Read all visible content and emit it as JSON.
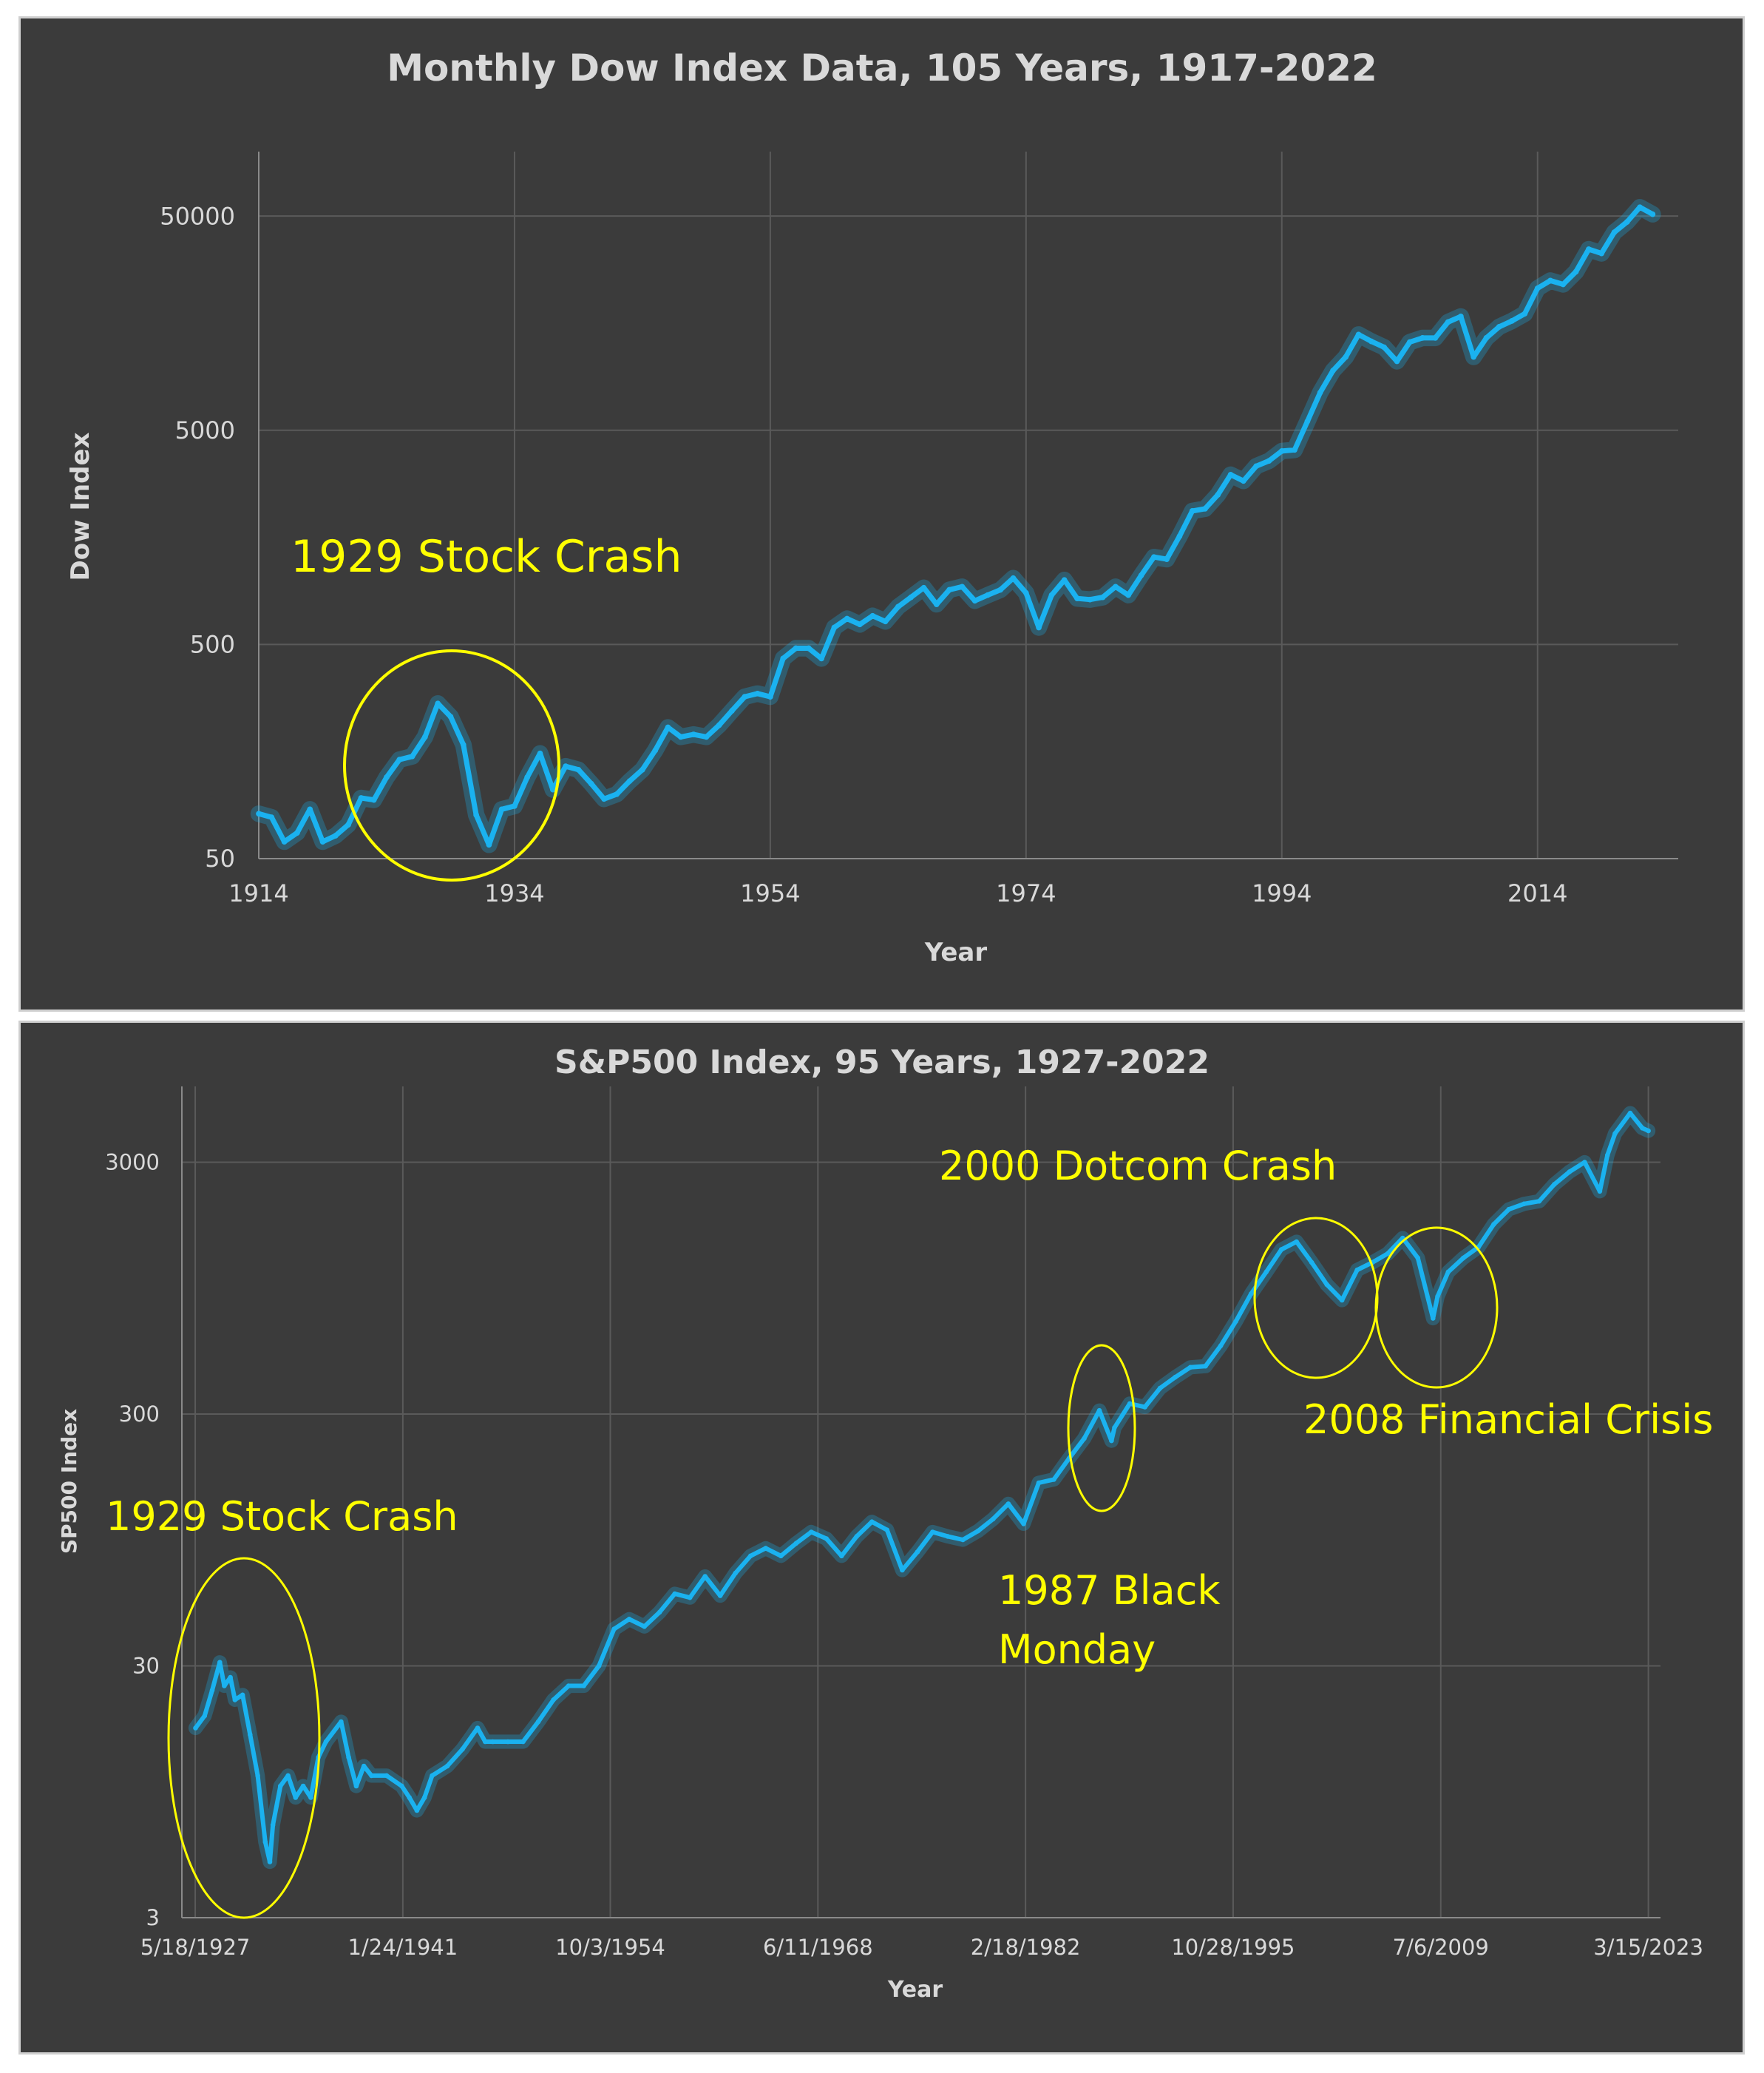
{
  "chart_data": [
    {
      "type": "line",
      "title": "Monthly Dow Index Data, 105 Years, 1917-2022",
      "xlabel": "Year",
      "ylabel": "Dow Index",
      "xscale": "linear",
      "yscale": "log",
      "xlim": [
        1914,
        2025
      ],
      "ylim": [
        50,
        100000
      ],
      "x_ticks": [
        "1914",
        "1934",
        "1954",
        "1974",
        "1994",
        "2014"
      ],
      "x_tick_values": [
        1914,
        1934,
        1954,
        1974,
        1994,
        2014
      ],
      "y_ticks": [
        "50",
        "500",
        "5000",
        "50000"
      ],
      "y_tick_values": [
        50,
        500,
        5000,
        50000
      ],
      "color": "#1ab2f0",
      "grid": true,
      "series": [
        {
          "name": "Dow Index",
          "points": [
            [
              1914,
              81
            ],
            [
              1915,
              78
            ],
            [
              1916,
              60
            ],
            [
              1917,
              66
            ],
            [
              1918,
              85
            ],
            [
              1919,
              60
            ],
            [
              1920,
              64
            ],
            [
              1921,
              72
            ],
            [
              1922,
              96
            ],
            [
              1923,
              94
            ],
            [
              1924,
              120
            ],
            [
              1925,
              145
            ],
            [
              1926,
              150
            ],
            [
              1927,
              185
            ],
            [
              1928,
              265
            ],
            [
              1929,
              230
            ],
            [
              1930,
              170
            ],
            [
              1931,
              80
            ],
            [
              1932,
              58
            ],
            [
              1933,
              85
            ],
            [
              1934,
              88
            ],
            [
              1935,
              120
            ],
            [
              1936,
              155
            ],
            [
              1937,
              105
            ],
            [
              1938,
              135
            ],
            [
              1939,
              130
            ],
            [
              1940,
              112
            ],
            [
              1941,
              95
            ],
            [
              1942,
              100
            ],
            [
              1943,
              115
            ],
            [
              1944,
              130
            ],
            [
              1945,
              160
            ],
            [
              1946,
              205
            ],
            [
              1947,
              185
            ],
            [
              1948,
              190
            ],
            [
              1949,
              185
            ],
            [
              1950,
              210
            ],
            [
              1951,
              245
            ],
            [
              1952,
              285
            ],
            [
              1953,
              295
            ],
            [
              1954,
              285
            ],
            [
              1955,
              430
            ],
            [
              1956,
              480
            ],
            [
              1957,
              480
            ],
            [
              1958,
              430
            ],
            [
              1959,
              600
            ],
            [
              1960,
              660
            ],
            [
              1961,
              620
            ],
            [
              1962,
              680
            ],
            [
              1963,
              640
            ],
            [
              1964,
              750
            ],
            [
              1965,
              830
            ],
            [
              1966,
              920
            ],
            [
              1967,
              770
            ],
            [
              1968,
              900
            ],
            [
              1969,
              930
            ],
            [
              1970,
              800
            ],
            [
              1971,
              850
            ],
            [
              1972,
              900
            ],
            [
              1973,
              1020
            ],
            [
              1974,
              870
            ],
            [
              1975,
              600
            ],
            [
              1976,
              850
            ],
            [
              1977,
              1000
            ],
            [
              1978,
              820
            ],
            [
              1979,
              810
            ],
            [
              1980,
              830
            ],
            [
              1981,
              930
            ],
            [
              1982,
              850
            ],
            [
              1983,
              1050
            ],
            [
              1984,
              1280
            ],
            [
              1985,
              1250
            ],
            [
              1986,
              1600
            ],
            [
              1987,
              2100
            ],
            [
              1988,
              2150
            ],
            [
              1989,
              2500
            ],
            [
              1990,
              3100
            ],
            [
              1991,
              2900
            ],
            [
              1992,
              3400
            ],
            [
              1993,
              3600
            ],
            [
              1994,
              4000
            ],
            [
              1995,
              4050
            ],
            [
              1996,
              5500
            ],
            [
              1997,
              7500
            ],
            [
              1998,
              9500
            ],
            [
              1999,
              11000
            ],
            [
              2000,
              14000
            ],
            [
              2001,
              13000
            ],
            [
              2002,
              12200
            ],
            [
              2003,
              10500
            ],
            [
              2004,
              12900
            ],
            [
              2005,
              13500
            ],
            [
              2006,
              13500
            ],
            [
              2007,
              16000
            ],
            [
              2008,
              17000
            ],
            [
              2009,
              11000
            ],
            [
              2010,
              13500
            ],
            [
              2011,
              15200
            ],
            [
              2012,
              16200
            ],
            [
              2013,
              17500
            ],
            [
              2014,
              23000
            ],
            [
              2015,
              25000
            ],
            [
              2016,
              24000
            ],
            [
              2017,
              27500
            ],
            [
              2018,
              35000
            ],
            [
              2019,
              33500
            ],
            [
              2020,
              42000
            ],
            [
              2021,
              47000
            ],
            [
              2022,
              55000
            ],
            [
              2023,
              51000
            ]
          ]
        }
      ],
      "annotations": [
        {
          "label": "1929 Stock Crash",
          "x": 1929,
          "y": 150
        }
      ]
    },
    {
      "type": "line",
      "title": "S&P500 Index, 95 Years, 1927-2022",
      "xlabel": "Year",
      "ylabel": "SP500 Index",
      "xscale": "linear",
      "yscale": "log",
      "xlim": [
        1926.5,
        2024
      ],
      "ylim": [
        3,
        6000
      ],
      "x_ticks": [
        "5/18/1927",
        "1/24/1941",
        "10/3/1954",
        "6/11/1968",
        "2/18/1982",
        "10/28/1995",
        "7/6/2009",
        "3/15/2023"
      ],
      "x_tick_values": [
        1927.38,
        1941.07,
        1954.75,
        1968.44,
        1982.13,
        1995.82,
        2009.51,
        2023.2
      ],
      "y_ticks": [
        "3",
        "30",
        "300",
        "3000"
      ],
      "y_tick_values": [
        3,
        30,
        300,
        3000
      ],
      "color": "#1ab2f0",
      "grid": true,
      "series": [
        {
          "name": "SP500 Index",
          "points": [
            [
              1927.4,
              17
            ],
            [
              1928,
              19
            ],
            [
              1928.5,
              24
            ],
            [
              1929,
              31
            ],
            [
              1929.3,
              25
            ],
            [
              1929.7,
              27
            ],
            [
              1930,
              22
            ],
            [
              1930.5,
              23
            ],
            [
              1931,
              16
            ],
            [
              1931.5,
              11
            ],
            [
              1932,
              6
            ],
            [
              1932.3,
              5
            ],
            [
              1932.5,
              7
            ],
            [
              1933,
              10
            ],
            [
              1933.5,
              11
            ],
            [
              1934,
              9
            ],
            [
              1934.5,
              10
            ],
            [
              1935,
              9
            ],
            [
              1935.5,
              13
            ],
            [
              1936,
              15
            ],
            [
              1937,
              18
            ],
            [
              1937.5,
              13
            ],
            [
              1938,
              10
            ],
            [
              1938.5,
              12
            ],
            [
              1939,
              11
            ],
            [
              1940,
              11
            ],
            [
              1941,
              10
            ],
            [
              1941.5,
              9
            ],
            [
              1942,
              8
            ],
            [
              1942.5,
              9
            ],
            [
              1943,
              11
            ],
            [
              1944,
              12
            ],
            [
              1945,
              14
            ],
            [
              1946,
              17
            ],
            [
              1946.5,
              15
            ],
            [
              1947,
              15
            ],
            [
              1948,
              15
            ],
            [
              1949,
              15
            ],
            [
              1950,
              18
            ],
            [
              1951,
              22
            ],
            [
              1952,
              25
            ],
            [
              1953,
              25
            ],
            [
              1954,
              30
            ],
            [
              1955,
              42
            ],
            [
              1956,
              46
            ],
            [
              1957,
              43
            ],
            [
              1958,
              49
            ],
            [
              1959,
              58
            ],
            [
              1960,
              56
            ],
            [
              1961,
              68
            ],
            [
              1962,
              57
            ],
            [
              1963,
              70
            ],
            [
              1964,
              82
            ],
            [
              1965,
              88
            ],
            [
              1966,
              82
            ],
            [
              1967,
              92
            ],
            [
              1968,
              102
            ],
            [
              1969,
              96
            ],
            [
              1970,
              82
            ],
            [
              1971,
              98
            ],
            [
              1972,
              112
            ],
            [
              1973,
              104
            ],
            [
              1974,
              72
            ],
            [
              1975,
              85
            ],
            [
              1976,
              102
            ],
            [
              1977,
              98
            ],
            [
              1978,
              95
            ],
            [
              1979,
              103
            ],
            [
              1980,
              115
            ],
            [
              1981,
              132
            ],
            [
              1982,
              110
            ],
            [
              1983,
              160
            ],
            [
              1984,
              165
            ],
            [
              1985,
              200
            ],
            [
              1986,
              240
            ],
            [
              1987,
              310
            ],
            [
              1987.8,
              235
            ],
            [
              1988,
              265
            ],
            [
              1989,
              330
            ],
            [
              1990,
              320
            ],
            [
              1991,
              380
            ],
            [
              1992,
              420
            ],
            [
              1993,
              460
            ],
            [
              1994,
              465
            ],
            [
              1995,
              560
            ],
            [
              1996,
              700
            ],
            [
              1997,
              900
            ],
            [
              1998,
              1100
            ],
            [
              1999,
              1350
            ],
            [
              2000,
              1450
            ],
            [
              2001,
              1200
            ],
            [
              2002,
              980
            ],
            [
              2003,
              850
            ],
            [
              2004,
              1120
            ],
            [
              2005,
              1200
            ],
            [
              2006,
              1300
            ],
            [
              2007,
              1500
            ],
            [
              2008,
              1250
            ],
            [
              2009,
              720
            ],
            [
              2009.3,
              880
            ],
            [
              2010,
              1100
            ],
            [
              2011,
              1250
            ],
            [
              2012,
              1380
            ],
            [
              2013,
              1700
            ],
            [
              2014,
              1950
            ],
            [
              2015,
              2050
            ],
            [
              2016,
              2100
            ],
            [
              2017,
              2450
            ],
            [
              2018,
              2750
            ],
            [
              2019,
              3000
            ],
            [
              2020,
              2300
            ],
            [
              2020.5,
              3200
            ],
            [
              2021,
              3900
            ],
            [
              2022,
              4700
            ],
            [
              2022.8,
              4100
            ],
            [
              2023.2,
              4000
            ]
          ]
        }
      ],
      "annotations": [
        {
          "label": "1929 Stock Crash",
          "x": 1929,
          "y": 12
        },
        {
          "label": "1987 Black Monday",
          "lines": [
            "1987 Black",
            "Monday"
          ],
          "x": 1987,
          "y": 300
        },
        {
          "label": "2000 Dotcom Crash",
          "x": 2000,
          "y": 1300
        },
        {
          "label": "2008 Financial Crisis",
          "x": 2008,
          "y": 1000
        }
      ]
    }
  ]
}
